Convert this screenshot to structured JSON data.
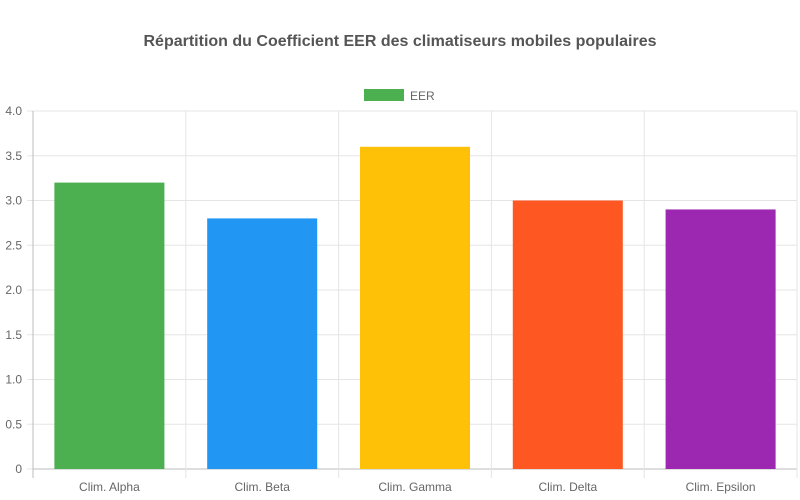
{
  "chart_data": {
    "type": "bar",
    "title": "Répartition du Coefficient EER des climatiseurs mobiles populaires",
    "categories": [
      "Clim. Alpha",
      "Clim. Beta",
      "Clim. Gamma",
      "Clim. Delta",
      "Clim. Epsilon"
    ],
    "series": [
      {
        "name": "EER",
        "values": [
          3.2,
          2.8,
          3.6,
          3.0,
          2.9
        ],
        "colors": [
          "#4caf50",
          "#2196f3",
          "#ffc107",
          "#ff5722",
          "#9c27b0"
        ]
      }
    ],
    "ylim": [
      0,
      4.0
    ],
    "yticks": [
      "0",
      "0.5",
      "1.0",
      "1.5",
      "2.0",
      "2.5",
      "3.0",
      "3.5",
      "4.0"
    ],
    "grid": true,
    "legend_position": "top"
  }
}
